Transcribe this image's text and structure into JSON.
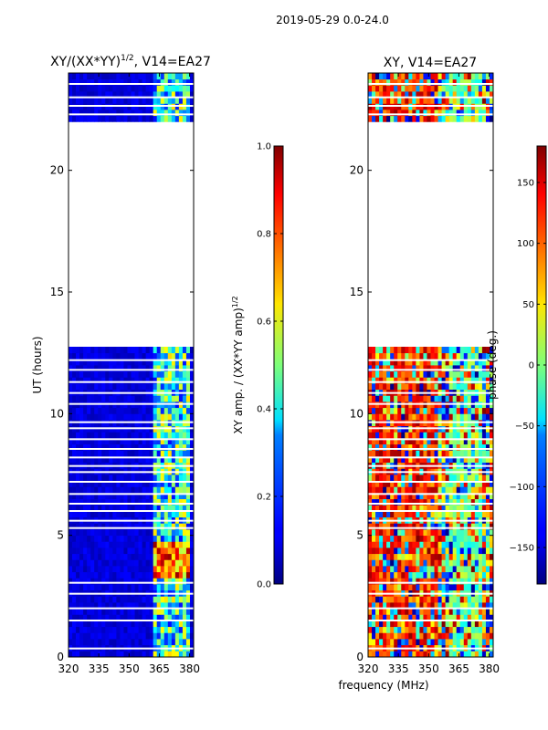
{
  "suptitle": "2019-05-29 0.0-24.0",
  "chart_data": [
    {
      "type": "heatmap",
      "title_main": "XY/(XX*YY)",
      "title_exp": "1/2",
      "title_rest": ", V14=EA27",
      "xlabel": "",
      "ylabel": "UT (hours)",
      "xlim": [
        320,
        382
      ],
      "ylim": [
        0,
        24
      ],
      "xticks": [
        "320",
        "335",
        "350",
        "365",
        "380"
      ],
      "xtick_values": [
        320,
        335,
        350,
        365,
        380
      ],
      "yticks": [
        "0",
        "5",
        "10",
        "15",
        "20"
      ],
      "ytick_values": [
        0,
        5,
        10,
        15,
        20
      ],
      "data_gaps_ut": [
        [
          12.7,
          22.0
        ]
      ],
      "colorbar": {
        "label_main": "XY amp. / (XX*YY amp)",
        "label_exp": "1/2",
        "range": [
          0.0,
          1.0
        ],
        "ticks": [
          "0.0",
          "0.2",
          "0.4",
          "0.6",
          "0.8",
          "1.0"
        ],
        "tick_values": [
          0.0,
          0.2,
          0.4,
          0.6,
          0.8,
          1.0
        ]
      }
    },
    {
      "type": "heatmap",
      "title": "XY, V14=EA27",
      "xlabel": "frequency (MHz)",
      "ylabel": "",
      "xlim": [
        320,
        382
      ],
      "ylim": [
        0,
        24
      ],
      "xticks": [
        "320",
        "335",
        "350",
        "365",
        "380"
      ],
      "xtick_values": [
        320,
        335,
        350,
        365,
        380
      ],
      "yticks": [
        "0",
        "5",
        "10",
        "15",
        "20"
      ],
      "ytick_values": [
        0,
        5,
        10,
        15,
        20
      ],
      "data_gaps_ut": [
        [
          12.7,
          22.0
        ]
      ],
      "colorbar": {
        "label": "phase (deg.)",
        "range": [
          -180,
          180
        ],
        "ticks": [
          "−150",
          "−100",
          "−50",
          "0",
          "50",
          "100",
          "150"
        ],
        "tick_values": [
          -150,
          -100,
          -50,
          0,
          50,
          100,
          150
        ]
      }
    }
  ]
}
